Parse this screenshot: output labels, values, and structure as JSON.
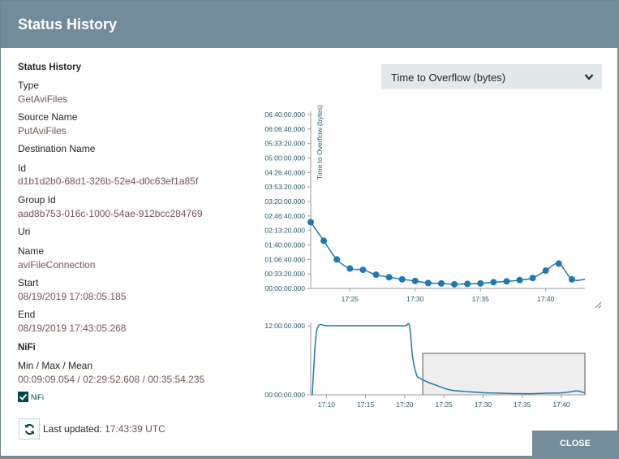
{
  "dialog": {
    "title": "Status History",
    "close_label": "CLOSE"
  },
  "details": {
    "heading": "Status History",
    "type_label": "Type",
    "type_value": "GetAviFiles",
    "source_label": "Source Name",
    "source_value": "PutAviFiles",
    "destination_label": "Destination Name",
    "id_label": "Id",
    "id_value": "d1b1d2b0-68d1-326b-52e4-d0c63ef1a85f",
    "group_label": "Group Id",
    "group_value": "aad8b753-016c-1000-54ae-912bcc284769",
    "uri_label": "Uri",
    "name_label": "Name",
    "name_value": "aviFileConnection",
    "start_label": "Start",
    "start_value": "08/19/2019 17:08:05.185",
    "end_label": "End",
    "end_value": "08/19/2019 17:43:05.268",
    "nifi_heading": "NiFi",
    "minmax_label": "Min / Max / Mean",
    "minmax_value": "00:09:09.054 / 02:29:52.608 / 00:35:54.235",
    "nifi_checkbox_label": "NiFi",
    "nifi_checked": true
  },
  "metric_select": {
    "value": "Time to Overflow (bytes)"
  },
  "footer": {
    "last_updated_label": "Last updated:",
    "last_updated_value": "17:43:39 UTC"
  },
  "colors": {
    "header": "#728d99",
    "series": "#1f77b4",
    "value_text": "#775351"
  },
  "icons": {
    "refresh": "refresh-icon",
    "chevron": "chevron-down-icon",
    "check": "check-icon"
  },
  "chart_data": [
    {
      "type": "line",
      "ylabel": "Time to Overflow (bytes)",
      "y_ticks": [
        "00:00:00.000",
        "00:33:20.000",
        "01:06:40.000",
        "01:40:00.000",
        "02:13:20.000",
        "02:46:40.000",
        "03:20:00.000",
        "03:53:20.000",
        "04:26:40.000",
        "05:00:00.000",
        "05:33:20.000",
        "06:06:40.000",
        "06:40:00.000"
      ],
      "x_ticks": [
        "17:25",
        "17:30",
        "17:35",
        "17:40"
      ],
      "x_range_min": [
        22,
        43
      ],
      "ylim_minutes": [
        0,
        420
      ],
      "series": [
        {
          "x": [
            22,
            23,
            24,
            25,
            26,
            27,
            28,
            29,
            30,
            31,
            32,
            33,
            34,
            35,
            36,
            37,
            38,
            39,
            40,
            41,
            42,
            43
          ],
          "y_minutes": [
            160,
            115,
            70,
            48,
            45,
            33,
            27,
            22,
            18,
            13,
            12,
            10,
            11,
            12,
            15,
            17,
            20,
            25,
            43,
            60,
            22,
            22
          ]
        }
      ],
      "points_shown": [
        22,
        23,
        24,
        25,
        26,
        27,
        28,
        29,
        30,
        31,
        32,
        33,
        34,
        35,
        36,
        37,
        38,
        39,
        40,
        41,
        42
      ]
    },
    {
      "type": "area",
      "y_ticks": [
        "00:00:00.000",
        "12:00:00.000"
      ],
      "x_ticks": [
        "17:10",
        "17:15",
        "17:20",
        "17:25",
        "17:30",
        "17:35",
        "17:40"
      ],
      "xlim_min": [
        8,
        43
      ],
      "brush_range_min": [
        22.3,
        43
      ],
      "series": [
        {
          "x": [
            8.2,
            8.6,
            9,
            10,
            12,
            15,
            18,
            20,
            20.6,
            21,
            21.5,
            22,
            23,
            24,
            25,
            26,
            28,
            30,
            33,
            36,
            38,
            40,
            41,
            42,
            43
          ],
          "y_minutes": [
            0,
            550,
            720,
            720,
            720,
            720,
            720,
            720,
            720,
            400,
            210,
            170,
            130,
            100,
            70,
            48,
            33,
            22,
            15,
            12,
            17,
            20,
            30,
            40,
            20
          ]
        }
      ]
    }
  ]
}
